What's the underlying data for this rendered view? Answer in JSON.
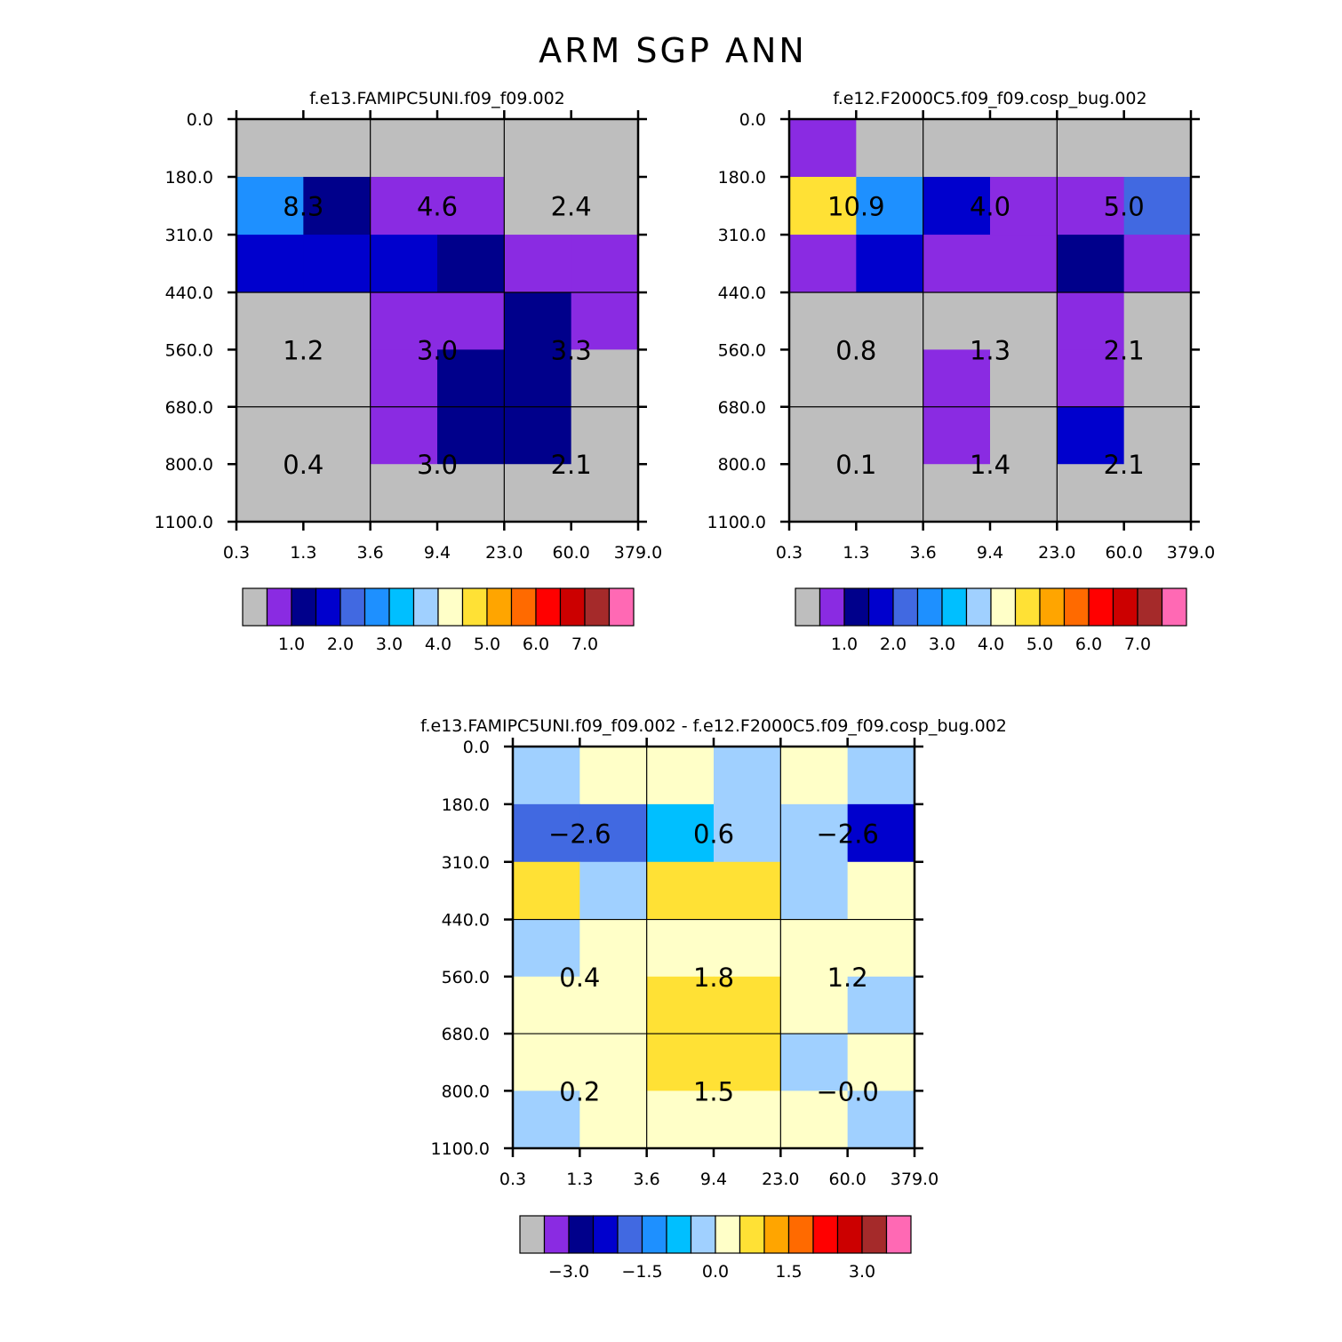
{
  "figure_title": "ARM SGP ANN",
  "chart_data": [
    {
      "type": "heatmap",
      "title": "f.e13.FAMIPC5UNI.f09_f09.002",
      "x_tick_labels": [
        "0.3",
        "1.3",
        "3.6",
        "9.4",
        "23.0",
        "60.0",
        "379.0"
      ],
      "y_tick_labels": [
        "0.0",
        "180.0",
        "310.0",
        "440.0",
        "560.0",
        "680.0",
        "800.0",
        "1100.0"
      ],
      "cell_value_bins": [
        [
          0,
          0,
          0,
          0,
          0,
          0
        ],
        [
          5,
          2,
          1,
          1,
          0,
          0
        ],
        [
          3,
          3,
          3,
          2,
          1,
          1
        ],
        [
          0,
          0,
          1,
          1,
          2,
          1
        ],
        [
          0,
          0,
          1,
          2,
          2,
          0
        ],
        [
          0,
          0,
          1,
          2,
          2,
          0
        ],
        [
          0,
          0,
          0,
          0,
          0,
          0
        ]
      ],
      "block_labels": [
        [
          "8.3",
          "4.6",
          "2.4"
        ],
        [
          "1.2",
          "3.0",
          "3.3"
        ],
        [
          "0.4",
          "3.0",
          "2.1"
        ]
      ],
      "colorbar": {
        "colors": [
          "#BEBEBE",
          "#8A2BE2",
          "#00008B",
          "#0000CD",
          "#4169E1",
          "#1E90FF",
          "#00BFFF",
          "#A0D0FF",
          "#FFFFC8",
          "#FFE135",
          "#FFA500",
          "#FF6A00",
          "#FF0000",
          "#CC0000",
          "#A52A2A",
          "#FF69B4"
        ],
        "tick_labels": [
          "1.0",
          "2.0",
          "3.0",
          "4.0",
          "5.0",
          "6.0",
          "7.0"
        ]
      }
    },
    {
      "type": "heatmap",
      "title": "f.e12.F2000C5.f09_f09.cosp_bug.002",
      "x_tick_labels": [
        "0.3",
        "1.3",
        "3.6",
        "9.4",
        "23.0",
        "60.0",
        "379.0"
      ],
      "y_tick_labels": [
        "0.0",
        "180.0",
        "310.0",
        "440.0",
        "560.0",
        "680.0",
        "800.0",
        "1100.0"
      ],
      "cell_value_bins": [
        [
          1,
          0,
          0,
          0,
          0,
          0
        ],
        [
          9,
          5,
          3,
          1,
          1,
          4
        ],
        [
          1,
          3,
          1,
          1,
          2,
          1
        ],
        [
          0,
          0,
          0,
          0,
          1,
          0
        ],
        [
          0,
          0,
          1,
          0,
          1,
          0
        ],
        [
          0,
          0,
          1,
          0,
          3,
          0
        ],
        [
          0,
          0,
          0,
          0,
          0,
          0
        ]
      ],
      "block_labels": [
        [
          "10.9",
          "4.0",
          "5.0"
        ],
        [
          "0.8",
          "1.3",
          "2.1"
        ],
        [
          "0.1",
          "1.4",
          "2.1"
        ]
      ],
      "colorbar": {
        "colors": [
          "#BEBEBE",
          "#8A2BE2",
          "#00008B",
          "#0000CD",
          "#4169E1",
          "#1E90FF",
          "#00BFFF",
          "#A0D0FF",
          "#FFFFC8",
          "#FFE135",
          "#FFA500",
          "#FF6A00",
          "#FF0000",
          "#CC0000",
          "#A52A2A",
          "#FF69B4"
        ],
        "tick_labels": [
          "1.0",
          "2.0",
          "3.0",
          "4.0",
          "5.0",
          "6.0",
          "7.0"
        ]
      }
    },
    {
      "type": "heatmap",
      "title": "f.e13.FAMIPC5UNI.f09_f09.002 - f.e12.F2000C5.f09_f09.cosp_bug.002",
      "x_tick_labels": [
        "0.3",
        "1.3",
        "3.6",
        "9.4",
        "23.0",
        "60.0",
        "379.0"
      ],
      "y_tick_labels": [
        "0.0",
        "180.0",
        "310.0",
        "440.0",
        "560.0",
        "680.0",
        "800.0",
        "1100.0"
      ],
      "cell_value_bins": [
        [
          7,
          8,
          8,
          7,
          8,
          7
        ],
        [
          4,
          4,
          6,
          7,
          7,
          3
        ],
        [
          9,
          7,
          9,
          9,
          7,
          8
        ],
        [
          7,
          8,
          8,
          8,
          8,
          8
        ],
        [
          8,
          8,
          9,
          9,
          8,
          7
        ],
        [
          8,
          8,
          9,
          9,
          7,
          8
        ],
        [
          7,
          8,
          8,
          8,
          8,
          7
        ]
      ],
      "block_labels": [
        [
          "−2.6",
          "0.6",
          "−2.6"
        ],
        [
          "0.4",
          "1.8",
          "1.2"
        ],
        [
          "0.2",
          "1.5",
          "−0.0"
        ]
      ],
      "colorbar": {
        "colors": [
          "#BEBEBE",
          "#8A2BE2",
          "#00008B",
          "#0000CD",
          "#4169E1",
          "#1E90FF",
          "#00BFFF",
          "#A0D0FF",
          "#FFFFC8",
          "#FFE135",
          "#FFA500",
          "#FF6A00",
          "#FF0000",
          "#CC0000",
          "#A52A2A",
          "#FF69B4"
        ],
        "tick_labels": [
          "−3.0",
          "−1.5",
          "0.0",
          "1.5",
          "3.0"
        ]
      }
    }
  ]
}
